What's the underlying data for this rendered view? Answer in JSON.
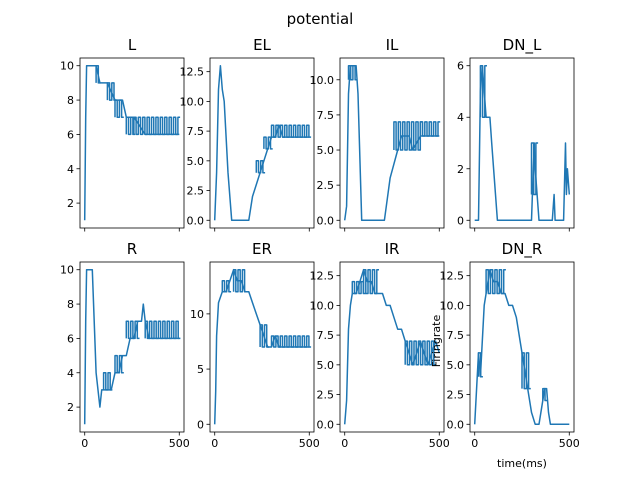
{
  "suptitle": "potential",
  "colors": {
    "series": "#1f77b4",
    "axes": "#000000",
    "background": "#ffffff"
  },
  "chart_data": [
    {
      "type": "line",
      "title": "L",
      "xlabel": "",
      "ylabel": "",
      "xlim": [
        -25,
        525
      ],
      "ylim": [
        0.55,
        10.45
      ],
      "yticks": [
        2,
        4,
        6,
        8,
        10
      ],
      "ytick_labels": [
        "2",
        "4",
        "6",
        "8",
        "10"
      ],
      "xticks": [
        0,
        500
      ],
      "xtick_labels": [],
      "series": [
        {
          "x": [
            0,
            5,
            10,
            20,
            60,
            80,
            120,
            160,
            200,
            220,
            260,
            320,
            380,
            440,
            500
          ],
          "y": [
            1,
            7,
            10,
            10,
            10,
            9,
            9,
            8,
            8,
            7,
            7,
            6,
            6,
            6,
            6
          ],
          "band": [
            {
              "x0": 60,
              "x1": 80,
              "y0": 9,
              "y1": 10
            },
            {
              "x0": 120,
              "x1": 160,
              "y0": 8,
              "y1": 9
            },
            {
              "x0": 160,
              "x1": 200,
              "y0": 7,
              "y1": 8
            },
            {
              "x0": 220,
              "x1": 260,
              "y0": 6,
              "y1": 7
            },
            {
              "x0": 260,
              "x1": 500,
              "y0": 6,
              "y1": 7
            }
          ]
        }
      ]
    },
    {
      "type": "line",
      "title": "EL",
      "xlabel": "",
      "ylabel": "",
      "xlim": [
        -25,
        525
      ],
      "ylim": [
        -0.65,
        13.65
      ],
      "yticks": [
        0.0,
        2.5,
        5.0,
        7.5,
        10.0,
        12.5
      ],
      "ytick_labels": [
        "0.0",
        "2.5",
        "5.0",
        "7.5",
        "10.0",
        "12.5"
      ],
      "xticks": [
        0,
        500
      ],
      "xtick_labels": [],
      "series": [
        {
          "x": [
            0,
            10,
            20,
            30,
            40,
            50,
            70,
            90,
            180,
            200,
            220,
            240,
            260,
            280,
            300,
            320,
            340,
            360,
            400,
            500
          ],
          "y": [
            0,
            4,
            11,
            13,
            11,
            10,
            4,
            0,
            0,
            2,
            3,
            4,
            5,
            6,
            7,
            7,
            8,
            7,
            7,
            7
          ],
          "band": [
            {
              "x0": 220,
              "x1": 260,
              "y0": 4,
              "y1": 5
            },
            {
              "x0": 260,
              "x1": 300,
              "y0": 6,
              "y1": 7
            },
            {
              "x0": 300,
              "x1": 500,
              "y0": 7,
              "y1": 8
            }
          ]
        }
      ]
    },
    {
      "type": "line",
      "title": "IL",
      "xlabel": "",
      "ylabel": "",
      "xlim": [
        -25,
        525
      ],
      "ylim": [
        -0.55,
        11.55
      ],
      "yticks": [
        0.0,
        2.5,
        5.0,
        7.5,
        10.0
      ],
      "ytick_labels": [
        "0.0",
        "2.5",
        "5.0",
        "7.5",
        "10.0"
      ],
      "xticks": [
        0,
        500
      ],
      "xtick_labels": [],
      "series": [
        {
          "x": [
            0,
            10,
            20,
            30,
            60,
            70,
            90,
            210,
            230,
            240,
            260,
            280,
            300,
            320,
            340,
            360,
            400,
            500
          ],
          "y": [
            0,
            1,
            9,
            11,
            11,
            9,
            0,
            0,
            2,
            3,
            4,
            5,
            6,
            6,
            6,
            5,
            6,
            6
          ],
          "band": [
            {
              "x0": 20,
              "x1": 60,
              "y0": 10,
              "y1": 11
            },
            {
              "x0": 260,
              "x1": 400,
              "y0": 5,
              "y1": 7
            },
            {
              "x0": 400,
              "x1": 500,
              "y0": 6,
              "y1": 7
            }
          ]
        }
      ]
    },
    {
      "type": "line",
      "title": "DN_L",
      "xlabel": "",
      "ylabel": "",
      "xlim": [
        -25,
        525
      ],
      "ylim": [
        -0.3,
        6.3
      ],
      "yticks": [
        0,
        2,
        4,
        6
      ],
      "ytick_labels": [
        "0",
        "2",
        "4",
        "6"
      ],
      "xticks": [
        0,
        500
      ],
      "xtick_labels": [],
      "series": [
        {
          "x": [
            0,
            20,
            30,
            40,
            50,
            60,
            70,
            80,
            90,
            100,
            110,
            120,
            300,
            310,
            315,
            320,
            330,
            340,
            410,
            420,
            425,
            430,
            470,
            480,
            485,
            490,
            500
          ],
          "y": [
            0,
            0,
            5,
            6,
            5,
            4,
            4,
            4,
            3,
            2,
            1,
            0,
            0,
            2,
            3,
            2,
            1,
            0,
            0,
            1,
            0,
            0,
            0,
            3,
            1,
            2,
            1
          ],
          "band": [
            {
              "x0": 30,
              "x1": 60,
              "y0": 4,
              "y1": 6
            },
            {
              "x0": 300,
              "x1": 330,
              "y0": 1,
              "y1": 3
            }
          ]
        }
      ]
    },
    {
      "type": "line",
      "title": "R",
      "xlabel": "",
      "ylabel": "",
      "xlim": [
        -25,
        525
      ],
      "ylim": [
        0.55,
        10.45
      ],
      "yticks": [
        2,
        4,
        6,
        8,
        10
      ],
      "ytick_labels": [
        "2",
        "4",
        "6",
        "8",
        "10"
      ],
      "xticks": [
        0,
        500
      ],
      "xtick_labels": [
        "0",
        "500"
      ],
      "series": [
        {
          "x": [
            0,
            5,
            10,
            20,
            40,
            60,
            70,
            80,
            90,
            100,
            120,
            140,
            160,
            180,
            200,
            220,
            240,
            260,
            280,
            300,
            310,
            320,
            340,
            400,
            500
          ],
          "y": [
            1,
            7,
            10,
            10,
            10,
            4,
            3,
            2,
            3,
            3,
            3,
            3,
            4,
            4,
            5,
            5,
            6,
            6,
            7,
            7,
            8,
            7,
            6,
            6,
            6
          ],
          "band": [
            {
              "x0": 100,
              "x1": 140,
              "y0": 3,
              "y1": 4
            },
            {
              "x0": 160,
              "x1": 200,
              "y0": 4,
              "y1": 5
            },
            {
              "x0": 220,
              "x1": 280,
              "y0": 6,
              "y1": 7
            },
            {
              "x0": 320,
              "x1": 500,
              "y0": 6,
              "y1": 7
            }
          ]
        }
      ]
    },
    {
      "type": "line",
      "title": "ER",
      "xlabel": "",
      "ylabel": "",
      "xlim": [
        -25,
        525
      ],
      "ylim": [
        -0.7,
        14.7
      ],
      "yticks": [
        0,
        5,
        10
      ],
      "ytick_labels": [
        "0",
        "5",
        "10"
      ],
      "xticks": [
        0,
        500
      ],
      "xtick_labels": [
        "0",
        "500"
      ],
      "series": [
        {
          "x": [
            0,
            5,
            10,
            20,
            40,
            60,
            80,
            100,
            120,
            140,
            160,
            180,
            200,
            220,
            240,
            260,
            280,
            300,
            320,
            340,
            380,
            500
          ],
          "y": [
            0,
            3,
            8,
            11,
            12,
            12,
            13,
            14,
            13,
            13,
            12,
            12,
            11,
            10,
            9,
            8,
            7,
            7,
            8,
            7,
            7,
            7
          ],
          "band": [
            {
              "x0": 40,
              "x1": 80,
              "y0": 12,
              "y1": 13
            },
            {
              "x0": 100,
              "x1": 160,
              "y0": 12,
              "y1": 14
            },
            {
              "x0": 240,
              "x1": 280,
              "y0": 7,
              "y1": 9
            },
            {
              "x0": 300,
              "x1": 500,
              "y0": 7,
              "y1": 8
            }
          ]
        }
      ]
    },
    {
      "type": "line",
      "title": "IR",
      "xlabel": "",
      "ylabel": "",
      "xlim": [
        -25,
        525
      ],
      "ylim": [
        -0.65,
        13.65
      ],
      "yticks": [
        0.0,
        2.5,
        5.0,
        7.5,
        10.0,
        12.5
      ],
      "ytick_labels": [
        "0.0",
        "2.5",
        "5.0",
        "7.5",
        "10.0",
        "12.5"
      ],
      "xticks": [
        0,
        500
      ],
      "xtick_labels": [
        "0",
        "500"
      ],
      "series": [
        {
          "x": [
            0,
            10,
            20,
            30,
            40,
            60,
            80,
            100,
            120,
            140,
            160,
            180,
            200,
            220,
            240,
            260,
            280,
            300,
            320,
            340,
            360,
            380,
            400,
            420,
            440,
            460,
            480,
            500
          ],
          "y": [
            0,
            2,
            8,
            10,
            11,
            11,
            12,
            13,
            12,
            12,
            11,
            11,
            11,
            10,
            10,
            9,
            8,
            8,
            7,
            6,
            5,
            6,
            7,
            6,
            5,
            6,
            7,
            6
          ],
          "band": [
            {
              "x0": 40,
              "x1": 100,
              "y0": 11,
              "y1": 12
            },
            {
              "x0": 100,
              "x1": 180,
              "y0": 11,
              "y1": 13
            },
            {
              "x0": 320,
              "x1": 480,
              "y0": 5,
              "y1": 7
            }
          ]
        }
      ]
    },
    {
      "type": "line",
      "title": "DN_R",
      "xlabel": "time(ms)",
      "ylabel": "Firingrate",
      "xlim": [
        -25,
        525
      ],
      "ylim": [
        -0.65,
        13.65
      ],
      "yticks": [
        0.0,
        2.5,
        5.0,
        7.5,
        10.0,
        12.5
      ],
      "ytick_labels": [
        "0.0",
        "2.5",
        "5.0",
        "7.5",
        "10.0",
        "12.5"
      ],
      "xticks": [
        0,
        500
      ],
      "xtick_labels": [
        "0",
        "500"
      ],
      "series": [
        {
          "x": [
            0,
            10,
            20,
            25,
            30,
            40,
            50,
            60,
            70,
            80,
            100,
            120,
            140,
            160,
            180,
            200,
            220,
            240,
            260,
            280,
            300,
            320,
            340,
            360,
            370,
            380,
            390,
            400,
            500
          ],
          "y": [
            0,
            3,
            6,
            5,
            4,
            7,
            10,
            11,
            12,
            13,
            12,
            12,
            11,
            11,
            10,
            10,
            9,
            7,
            5,
            3,
            1,
            0,
            0,
            2,
            3,
            3,
            1,
            0,
            0
          ],
          "band": [
            {
              "x0": 20,
              "x1": 40,
              "y0": 4,
              "y1": 6
            },
            {
              "x0": 60,
              "x1": 160,
              "y0": 11,
              "y1": 13
            },
            {
              "x0": 250,
              "x1": 290,
              "y0": 3,
              "y1": 6
            },
            {
              "x0": 360,
              "x1": 380,
              "y0": 2,
              "y1": 3
            }
          ]
        }
      ]
    }
  ]
}
